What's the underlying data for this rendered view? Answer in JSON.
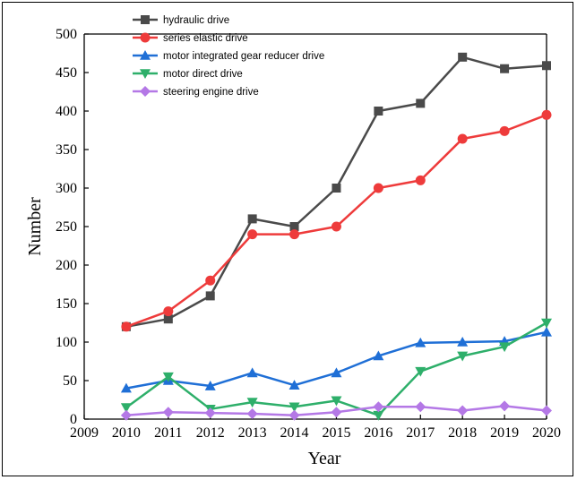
{
  "chart_data": {
    "type": "line",
    "title": "",
    "xlabel": "Year",
    "ylabel": "Number",
    "xlim": [
      2009,
      2020
    ],
    "ylim": [
      0,
      500
    ],
    "x_ticks": [
      2009,
      2010,
      2011,
      2012,
      2013,
      2014,
      2015,
      2016,
      2017,
      2018,
      2019,
      2020
    ],
    "y_ticks": [
      0,
      50,
      100,
      150,
      200,
      250,
      300,
      350,
      400,
      450,
      500
    ],
    "grid": false,
    "legend_position": "top-left",
    "x": [
      2010,
      2011,
      2012,
      2013,
      2014,
      2015,
      2016,
      2017,
      2018,
      2019,
      2020
    ],
    "series": [
      {
        "name": "hydraulic drive",
        "color": "#4a4a4a",
        "marker": "square",
        "values": [
          120,
          130,
          160,
          260,
          250,
          300,
          400,
          410,
          470,
          455,
          459
        ]
      },
      {
        "name": "series elastic drive",
        "color": "#ee3b3b",
        "marker": "circle",
        "values": [
          120,
          140,
          180,
          240,
          240,
          250,
          300,
          310,
          364,
          374,
          395
        ]
      },
      {
        "name": "motor integrated gear reducer drive",
        "color": "#1f6fd6",
        "marker": "triangle-up",
        "values": [
          40,
          50,
          43,
          60,
          44,
          60,
          82,
          99,
          100,
          101,
          113
        ]
      },
      {
        "name": "motor direct drive",
        "color": "#2eaf6a",
        "marker": "triangle-down",
        "values": [
          15,
          55,
          13,
          22,
          16,
          24,
          5,
          62,
          82,
          94,
          125
        ]
      },
      {
        "name": "steering engine drive",
        "color": "#b478e6",
        "marker": "diamond",
        "values": [
          5,
          9,
          8,
          7,
          5,
          9,
          16,
          16,
          11,
          17,
          11
        ]
      }
    ]
  }
}
